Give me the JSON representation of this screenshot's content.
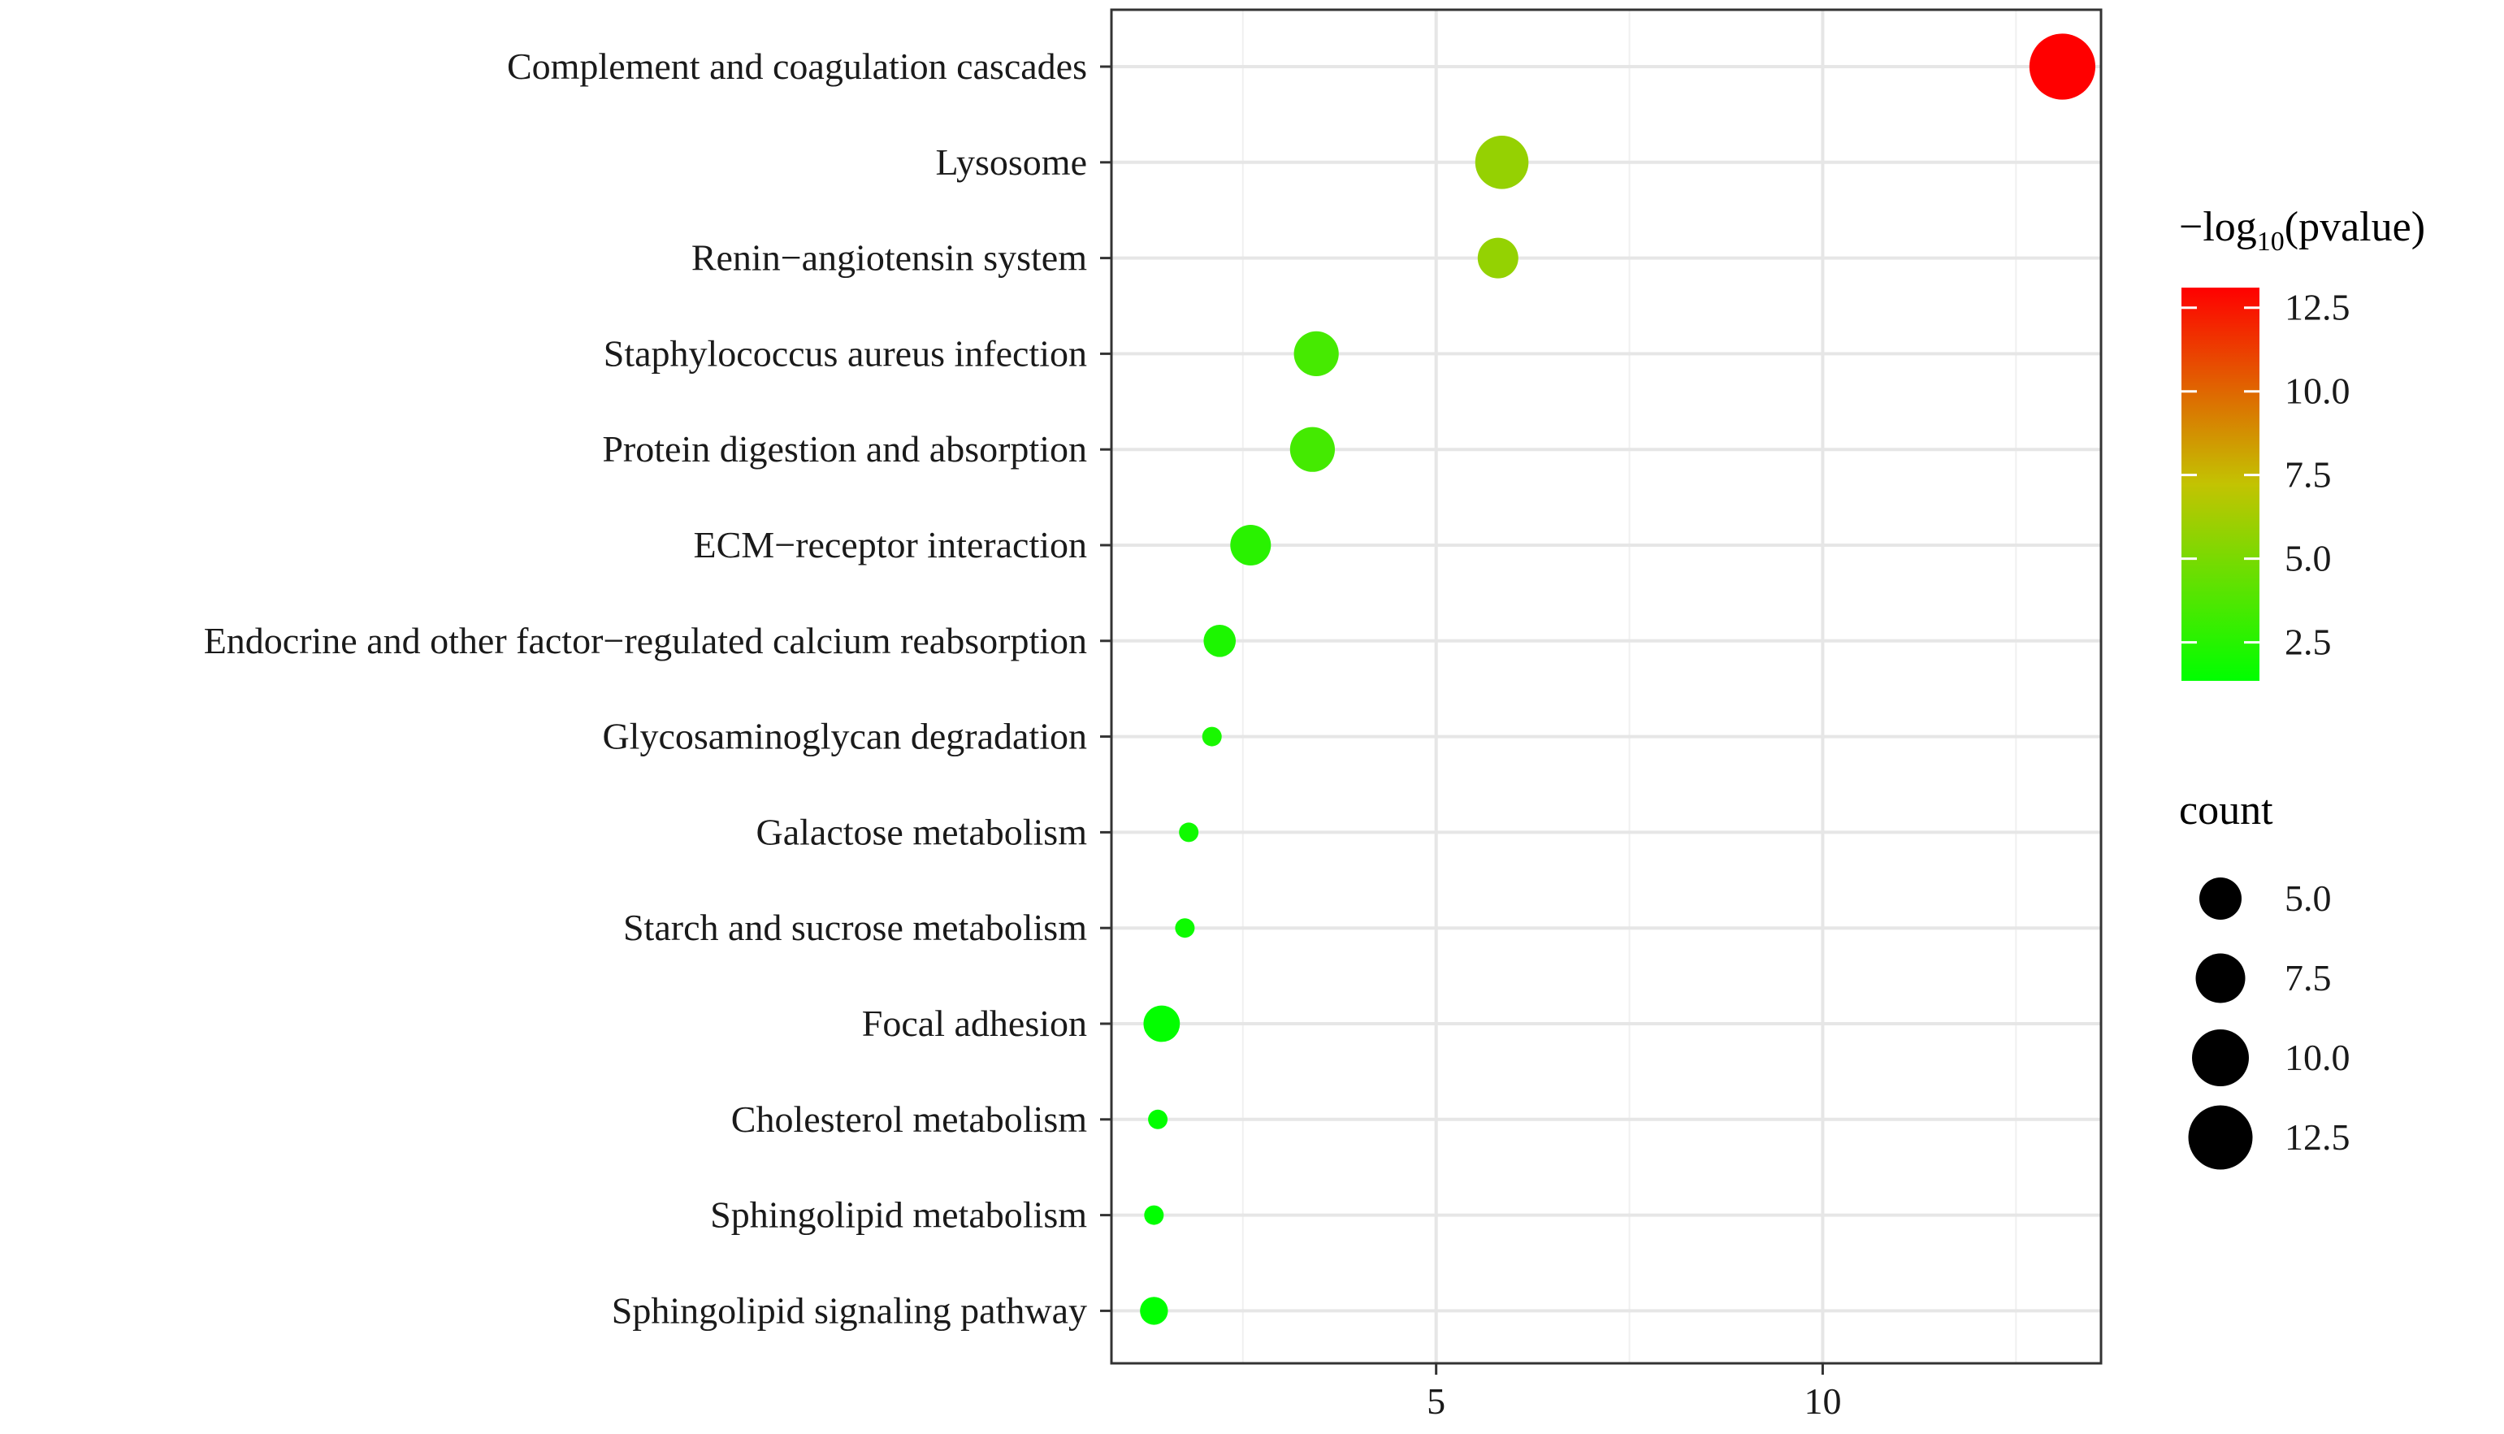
{
  "chart_data": {
    "type": "scatter",
    "title": "",
    "xlabel": "",
    "ylabel": "",
    "xlim": [
      0.8,
      13.6
    ],
    "x_ticks": [
      5,
      10
    ],
    "x_tick_labels": [
      "5",
      "10"
    ],
    "categories": [
      "Complement and coagulation cascades",
      "Lysosome",
      "Renin−angiotensin system",
      "Staphylococcus aureus infection",
      "Protein digestion and absorption",
      "ECM−receptor interaction",
      "Endocrine and other factor−regulated calcium reabsorption",
      "Glycosaminoglycan degradation",
      "Galactose metabolism",
      "Starch and sucrose metabolism",
      "Focal adhesion",
      "Cholesterol metabolism",
      "Sphingolipid metabolism",
      "Sphingolipid signaling pathway"
    ],
    "x": [
      13.1,
      5.85,
      5.8,
      3.45,
      3.4,
      2.6,
      2.2,
      2.1,
      1.8,
      1.75,
      1.45,
      1.4,
      1.35,
      1.35
    ],
    "pvalue_neglog10": [
      13.1,
      5.85,
      5.8,
      3.45,
      3.4,
      2.6,
      2.2,
      2.1,
      1.8,
      1.75,
      1.45,
      1.4,
      1.35,
      1.35
    ],
    "count": [
      14,
      11,
      8,
      9,
      9,
      8,
      6,
      3,
      3,
      3,
      7,
      3,
      3,
      5
    ],
    "legend_color": {
      "title_main": "−log",
      "title_sub": "10",
      "title_tail": "(pvalue)",
      "range": [
        1.35,
        13.1
      ],
      "ticks": [
        12.5,
        10.0,
        7.5,
        5.0,
        2.5
      ],
      "tick_labels": [
        "12.5",
        "10.0",
        "7.5",
        "5.0",
        "2.5"
      ],
      "color_low": "#00ff00",
      "color_mid": "#c3c302",
      "color_high": "#ff0000"
    },
    "legend_size": {
      "title": "count",
      "values": [
        5.0,
        7.5,
        10.0,
        12.5
      ],
      "labels": [
        "5.0",
        "7.5",
        "10.0",
        "12.5"
      ]
    },
    "grid": true
  }
}
